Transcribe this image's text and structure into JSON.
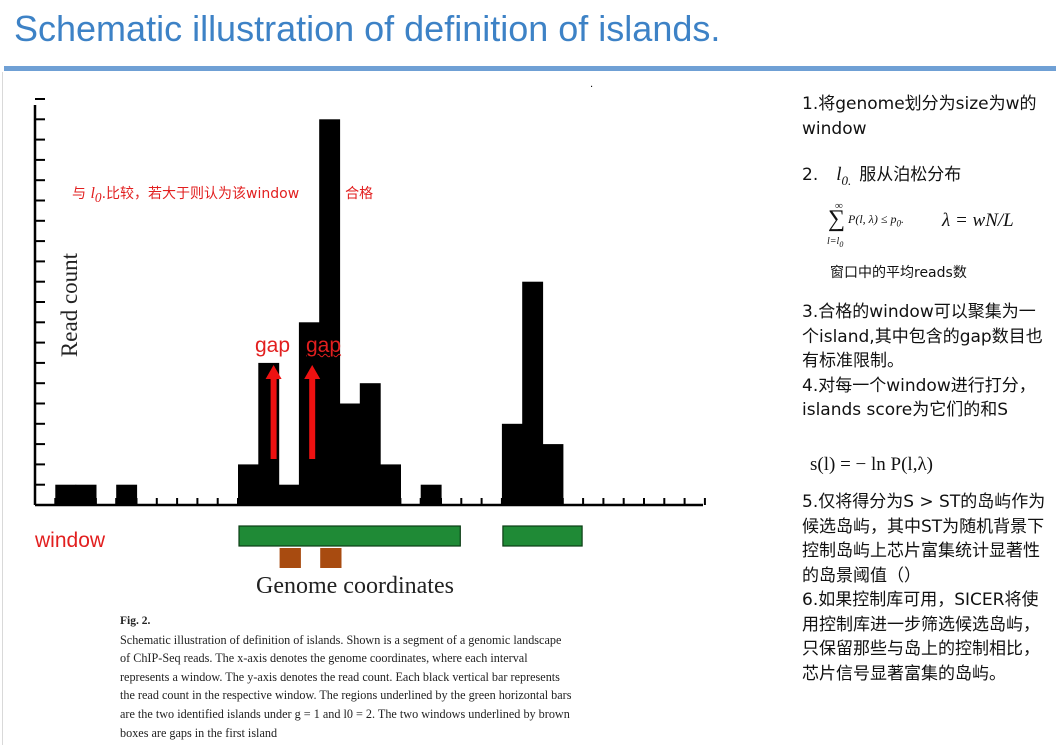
{
  "slide": {
    "title": "Schematic illustration of definition of islands."
  },
  "figure": {
    "ylabel": "Read count",
    "xlabel": "Genome coordinates",
    "annotations": {
      "compare_prefix": "与",
      "l0": "l",
      "l0_sub": "0",
      "compare_suffix": ".比较，若大于则认为该window",
      "compare_end": "合格",
      "gap1": "gap",
      "gap2": "gap",
      "window": "window"
    },
    "colors": {
      "bar": "#000000",
      "island": "#1f8a36",
      "gap_box": "#a84b10",
      "arrow": "#ee1111"
    }
  },
  "chart_data": {
    "type": "bar",
    "ylabel": "Read count",
    "xlabel": "Genome coordinates",
    "values": [
      0,
      1,
      1,
      0,
      1,
      0,
      0,
      0,
      0,
      0,
      2,
      7,
      1,
      9,
      19,
      5,
      6,
      2,
      0,
      1,
      0,
      0,
      0,
      4,
      11,
      3
    ],
    "islands": [
      [
        10,
        20
      ],
      [
        23,
        26
      ]
    ],
    "gap_windows": [
      12,
      14
    ]
  },
  "caption": {
    "title": "Fig. 2.",
    "lines": [
      "Schematic illustration of definition of islands. Shown is a segment of a genomic landscape",
      "of ChIP-Seq reads. The x-axis denotes the genome coordinates, where each interval",
      "represents a window. The y-axis denotes the read count. Each black vertical bar represents",
      "the read count in the respective window. The regions underlined by the green horizontal bars",
      "are the two identified islands under g = 1 and l0 = 2. The two windows underlined by brown",
      "boxes are gaps in the first island"
    ]
  },
  "notes": {
    "n1": "1.将genome划分为size为w的 window",
    "n2_prefix": "2.",
    "n2_math": "l",
    "n2_math_sub": "0.",
    "n2_text": "服从泊松分布",
    "formula_sum": "∑",
    "formula_top": "∞",
    "formula_bottom": "l=l",
    "formula_bottom_sub": "0",
    "formula_body": "P(l, λ) ≤ p",
    "formula_body_sub": "0",
    "formula_lambda": "λ = wN/L",
    "avg": "窗口中的平均reads数",
    "n3": "3.合格的window可以聚集为一个island,其中包含的gap数目也有标准限制。",
    "n4": "4.对每一个window进行打分，islands score为它们的和S",
    "formula_score": "s(l) = − ln P(l,λ)",
    "n5": "5.仅将得分为S > ST的岛屿作为候选岛屿，其中ST为随机背景下控制岛屿上芯片富集统计显著性的岛景阈值（）",
    "n6": "6.如果控制库可用，SICER将使用控制库进一步筛选候选岛屿，只保留那些与岛上的控制相比，芯片信号显著富集的岛屿。"
  }
}
